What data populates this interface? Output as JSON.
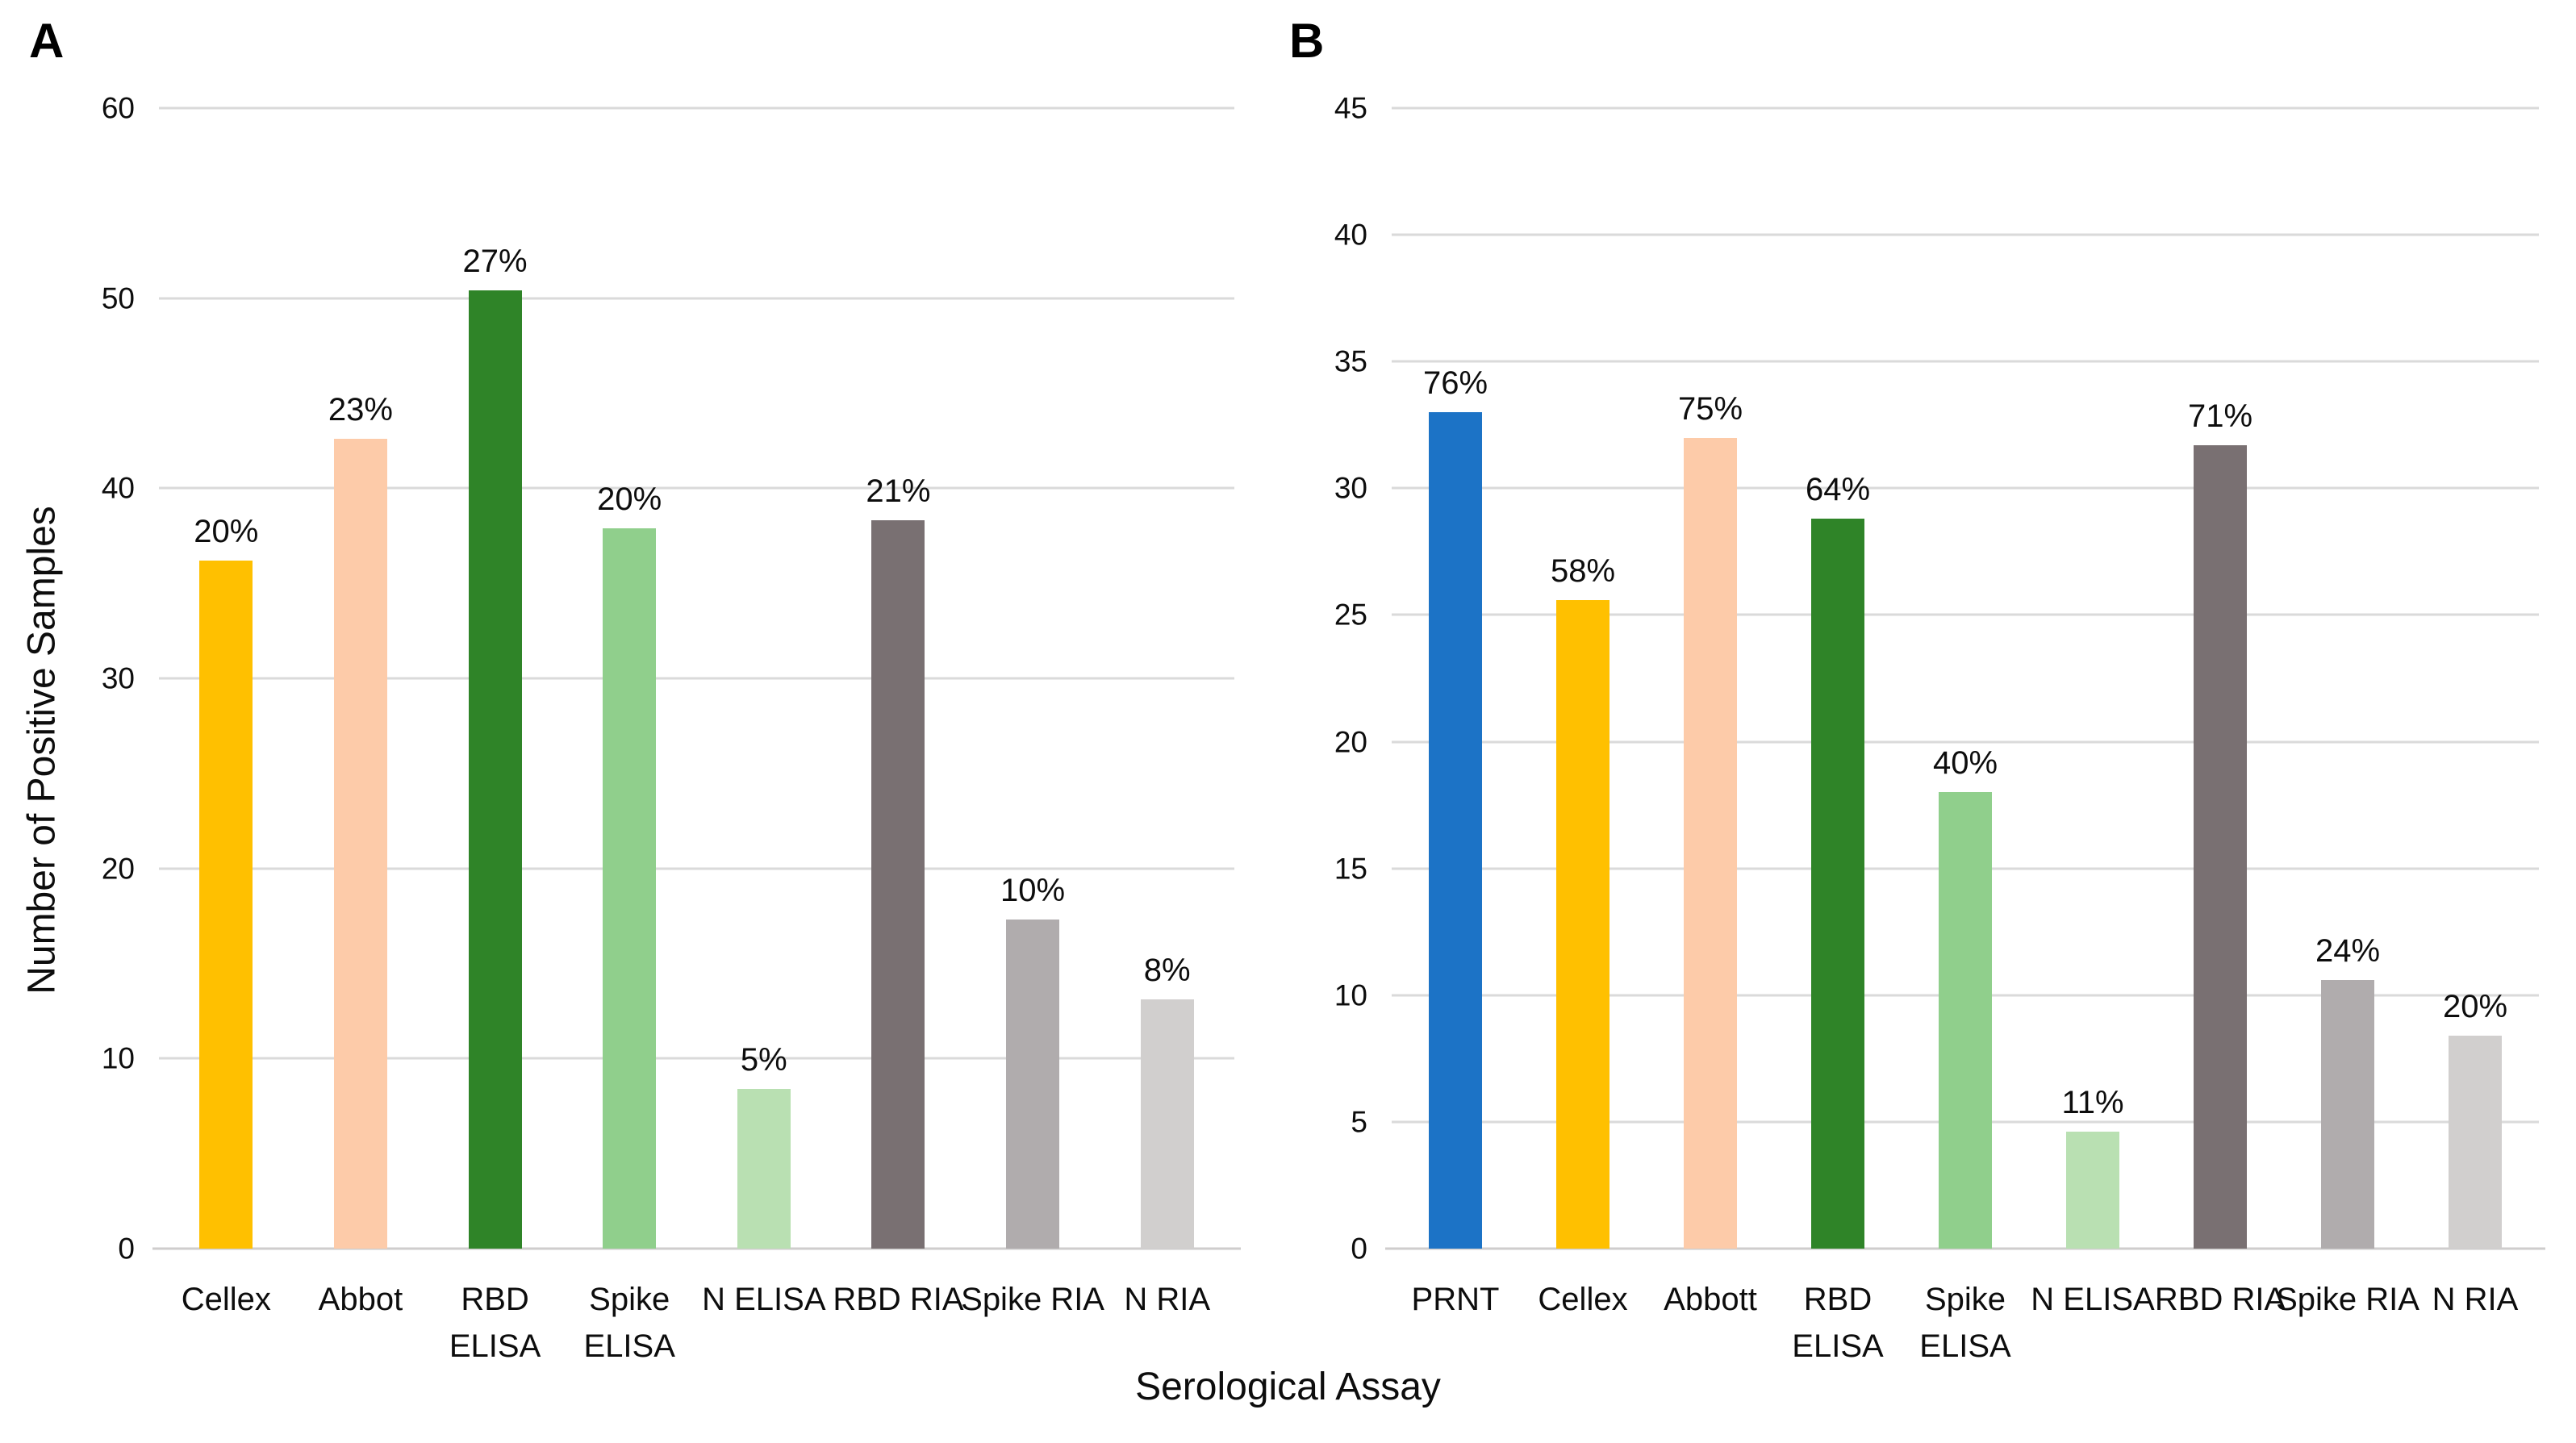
{
  "figure": {
    "panel_letters": [
      "A",
      "B"
    ],
    "ylabel": "Number of Positive Samples",
    "xlabel": "Serological Assay",
    "background": "#ffffff",
    "gridline_color": "#dadada"
  },
  "chart_data": [
    {
      "type": "bar",
      "panel": "A",
      "title": "",
      "xlabel": "Serological Assay",
      "ylabel": "Number of Positive Samples",
      "ylim": [
        0,
        60
      ],
      "yticks": [
        0,
        10,
        20,
        30,
        40,
        50,
        60
      ],
      "grid": true,
      "legend": "none",
      "categories": [
        "Cellex",
        "Abbot",
        "RBD\nELISA",
        "Spike\nELISA",
        "N ELISA",
        "RBD RIA",
        "Spike RIA",
        "N RIA"
      ],
      "values": [
        36.2,
        42.6,
        50.4,
        37.9,
        8.4,
        38.3,
        17.3,
        13.1
      ],
      "data_labels": [
        "20%",
        "23%",
        "27%",
        "20%",
        "5%",
        "21%",
        "10%",
        "8%"
      ],
      "colors": [
        "#FFC000",
        "#FDCBA9",
        "#2F8428",
        "#90CF8C",
        "#B9E0B2",
        "#797072",
        "#B0ACAD",
        "#D1CFCE"
      ]
    },
    {
      "type": "bar",
      "panel": "B",
      "title": "",
      "xlabel": "Serological Assay",
      "ylabel": "",
      "ylim": [
        0,
        45
      ],
      "yticks": [
        0,
        5,
        10,
        15,
        20,
        25,
        30,
        35,
        40,
        45
      ],
      "grid": true,
      "legend": "none",
      "categories": [
        "PRNT",
        "Cellex",
        "Abbott",
        "RBD\nELISA",
        "Spike\nELISA",
        "N ELISA",
        "RBD RIA",
        "Spike RIA",
        "N RIA"
      ],
      "values": [
        33.0,
        25.6,
        32.0,
        28.8,
        18.0,
        4.6,
        31.7,
        10.6,
        8.4
      ],
      "data_labels": [
        "76%",
        "58%",
        "75%",
        "64%",
        "40%",
        "11%",
        "71%",
        "24%",
        "20%"
      ],
      "colors": [
        "#1C73C6",
        "#FFC000",
        "#FDCBA9",
        "#2F8428",
        "#90CF8C",
        "#B9E0B2",
        "#797072",
        "#B0ACAD",
        "#D1CFCE"
      ]
    }
  ]
}
